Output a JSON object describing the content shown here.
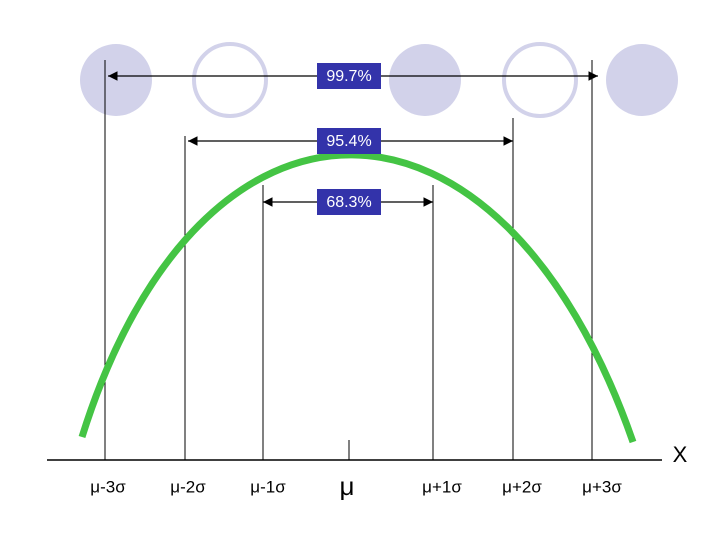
{
  "intervals": [
    "99.7%",
    "95.4%",
    "68.3%"
  ],
  "axis": {
    "labels": [
      "μ-3σ",
      "μ-2σ",
      "μ-1σ",
      "μ",
      "μ+1σ",
      "μ+2σ",
      "μ+3σ"
    ],
    "name": "X"
  }
}
